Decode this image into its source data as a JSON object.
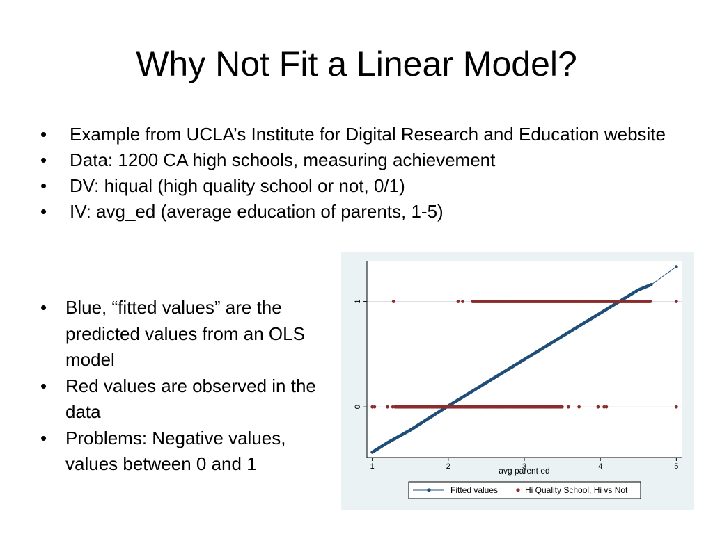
{
  "slide": {
    "title": "Why Not Fit a Linear Model?",
    "top_bullets": [
      "Example from UCLA’s Institute for Digital Research and Education website",
      "Data: 1200 CA high schools, measuring achievement",
      "DV: hiqual (high quality school or not, 0/1)",
      "IV: avg_ed (average education of parents, 1-5)"
    ],
    "left_bullets": [
      "Blue, “fitted values” are the predicted values from an OLS model",
      "Red values are observed in the data",
      "Problems: Negative values, values between 0 and 1"
    ]
  },
  "chart_data": {
    "type": "scatter",
    "title": "",
    "xlabel": "avg parent ed",
    "ylabel": "",
    "xlim": [
      0.93,
      5.07
    ],
    "ylim": [
      -0.48,
      1.38
    ],
    "x_ticks": [
      1,
      2,
      3,
      4,
      5
    ],
    "y_ticks": [
      0,
      1
    ],
    "grid": "horizontal",
    "legend_position": "bottom",
    "series": [
      {
        "name": "Fitted values",
        "marker": "circle",
        "color": "#1f4e79",
        "line": true,
        "x_range": [
          1,
          5
        ],
        "x": [
          1,
          1.2,
          1.3,
          1.5,
          2,
          2.5,
          3,
          3.5,
          4,
          4.5,
          4.67,
          5
        ],
        "y": [
          -0.43,
          -0.34,
          -0.3,
          -0.22,
          0.01,
          0.23,
          0.45,
          0.67,
          0.89,
          1.11,
          1.16,
          1.33
        ]
      },
      {
        "name": "Hi Quality School, Hi vs Not",
        "marker": "circle",
        "color": "#8b2d2d",
        "line": false,
        "y1_isolated_x": [
          1.28,
          2.13,
          2.19,
          5.0
        ],
        "y1_dense_range": [
          2.32,
          4.67
        ],
        "y0_isolated_x": [
          1.0,
          1.03,
          1.2,
          1.27,
          3.58,
          3.72,
          3.97,
          4.05,
          4.08,
          5.0
        ],
        "y0_dense_range": [
          1.3,
          3.5
        ]
      }
    ]
  }
}
